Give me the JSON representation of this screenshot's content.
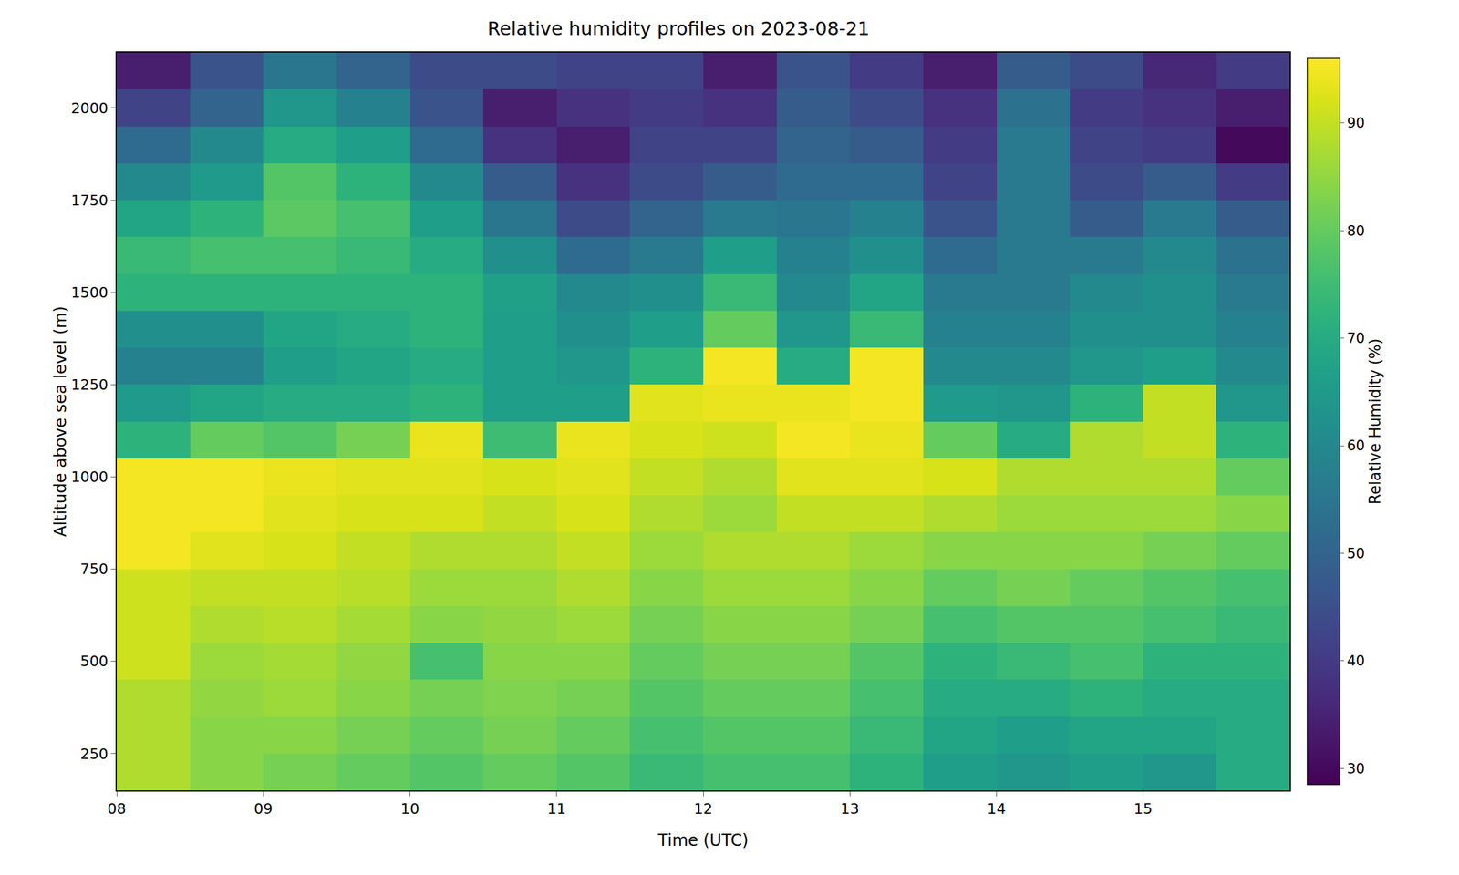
{
  "chart_data": {
    "type": "heatmap",
    "title": "Relative humidity profiles on 2023-08-21",
    "x_label": "Time (UTC)",
    "y_label": "Altitude above sea level (m)",
    "color": "Viridis",
    "x": [
      8.25,
      8.75,
      9.25,
      9.75,
      10.25,
      10.75,
      11.25,
      11.75,
      12.25,
      12.75,
      13.25,
      13.75,
      14.25,
      14.75,
      15.25,
      15.75
    ],
    "y": [
      200,
      300,
      400,
      500,
      600,
      700,
      800,
      900,
      1000,
      1100,
      1200,
      1300,
      1400,
      1500,
      1600,
      1700,
      1800,
      1900,
      2000,
      2100
    ],
    "z": [
      [
        88,
        84,
        82,
        80,
        78,
        80,
        78,
        74,
        76,
        76,
        72,
        66,
        64,
        66,
        64,
        70
      ],
      [
        88,
        84,
        84,
        82,
        80,
        82,
        80,
        76,
        78,
        78,
        74,
        68,
        66,
        68,
        68,
        70
      ],
      [
        88,
        85,
        86,
        84,
        82,
        83,
        82,
        78,
        80,
        80,
        76,
        70,
        70,
        72,
        70,
        70
      ],
      [
        91,
        86,
        87,
        85,
        76,
        84,
        84,
        80,
        82,
        82,
        78,
        72,
        74,
        76,
        72,
        72
      ],
      [
        91,
        88,
        89,
        87,
        84,
        85,
        86,
        82,
        84,
        84,
        82,
        76,
        78,
        78,
        76,
        74
      ],
      [
        91,
        90,
        90,
        89,
        86,
        86,
        88,
        84,
        86,
        86,
        84,
        80,
        82,
        80,
        78,
        76
      ],
      [
        95,
        93,
        92,
        90,
        88,
        88,
        90,
        86,
        88,
        88,
        86,
        84,
        84,
        84,
        82,
        80
      ],
      [
        95,
        95,
        93,
        92,
        92,
        90,
        92,
        88,
        86,
        90,
        90,
        88,
        86,
        86,
        86,
        84
      ],
      [
        95,
        95,
        94,
        93,
        93,
        92,
        93,
        90,
        88,
        93,
        93,
        92,
        88,
        88,
        88,
        80
      ],
      [
        72,
        80,
        78,
        82,
        94,
        75,
        94,
        92,
        91,
        95,
        94,
        80,
        70,
        88,
        90,
        72
      ],
      [
        65,
        68,
        70,
        70,
        72,
        66,
        66,
        93,
        94,
        94,
        95,
        65,
        64,
        72,
        90,
        64
      ],
      [
        58,
        58,
        66,
        68,
        70,
        66,
        64,
        72,
        95,
        70,
        95,
        60,
        60,
        64,
        66,
        60
      ],
      [
        62,
        62,
        68,
        70,
        72,
        66,
        62,
        66,
        80,
        64,
        74,
        58,
        58,
        62,
        62,
        58
      ],
      [
        72,
        72,
        72,
        72,
        72,
        67,
        60,
        62,
        74,
        60,
        68,
        56,
        56,
        60,
        62,
        56
      ],
      [
        74,
        76,
        76,
        74,
        70,
        62,
        52,
        56,
        66,
        58,
        62,
        52,
        56,
        56,
        60,
        54
      ],
      [
        68,
        72,
        79,
        76,
        66,
        55,
        44,
        50,
        56,
        55,
        58,
        46,
        56,
        48,
        56,
        48
      ],
      [
        60,
        65,
        78,
        72,
        60,
        48,
        38,
        44,
        48,
        52,
        52,
        42,
        56,
        44,
        48,
        40
      ],
      [
        52,
        60,
        70,
        66,
        52,
        38,
        34,
        42,
        42,
        50,
        48,
        40,
        56,
        42,
        40,
        30
      ],
      [
        42,
        50,
        64,
        58,
        46,
        34,
        38,
        40,
        38,
        48,
        44,
        38,
        54,
        40,
        38,
        34
      ],
      [
        34,
        46,
        55,
        50,
        44,
        44,
        42,
        42,
        34,
        46,
        40,
        34,
        48,
        44,
        36,
        40
      ]
    ],
    "xlim": [
      8,
      16
    ],
    "xticks": [
      {
        "value": 8,
        "label": "08"
      },
      {
        "value": 9,
        "label": "09"
      },
      {
        "value": 10,
        "label": "10"
      },
      {
        "value": 11,
        "label": "11"
      },
      {
        "value": 12,
        "label": "12"
      },
      {
        "value": 13,
        "label": "13"
      },
      {
        "value": 14,
        "label": "14"
      },
      {
        "value": 15,
        "label": "15"
      }
    ],
    "ylim": [
      150,
      2150
    ],
    "yticks": [
      250,
      500,
      750,
      1000,
      1250,
      1500,
      1750,
      2000
    ],
    "colorbar": {
      "title": "Relative Humidity (%)",
      "range": [
        28.5,
        96
      ],
      "ticks": [
        30,
        40,
        50,
        60,
        70,
        80,
        90
      ]
    }
  }
}
